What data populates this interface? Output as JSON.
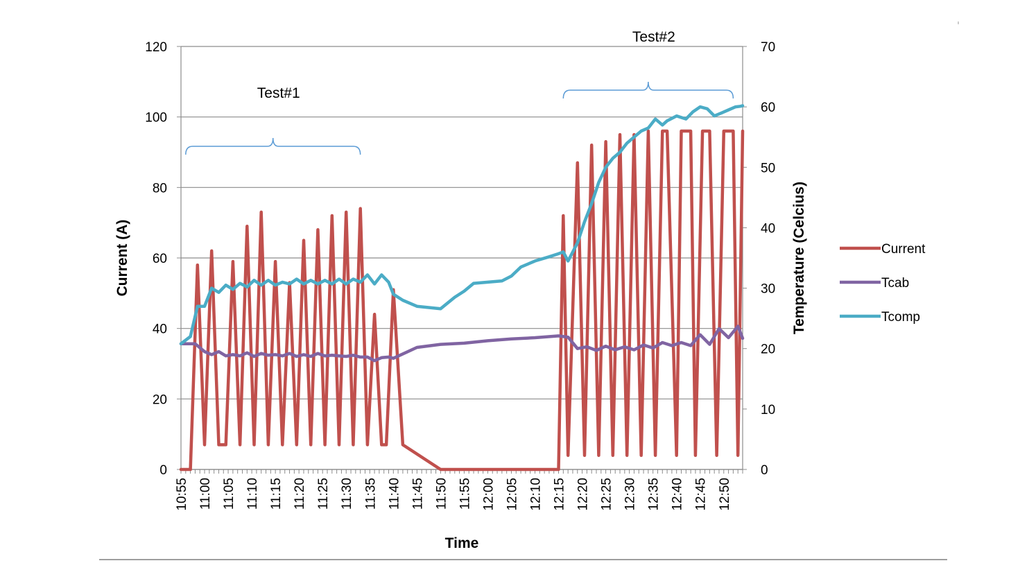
{
  "chart_data": {
    "type": "line",
    "xlabel": "Time",
    "ylabel": "Current (A)",
    "y2label": "Temperature (Celcius)",
    "ylim": [
      0,
      120
    ],
    "y2lim": [
      0,
      70
    ],
    "yticks": [
      "0",
      "20",
      "40",
      "60",
      "80",
      "100",
      "120"
    ],
    "y2ticks": [
      "0",
      "10",
      "20",
      "30",
      "40",
      "50",
      "60",
      "70"
    ],
    "x_ticks": [
      "10:55",
      "11:00",
      "11:05",
      "11:10",
      "11:15",
      "11:20",
      "11:25",
      "11:30",
      "11:35",
      "11:40",
      "11:45",
      "11:50",
      "11:55",
      "12:00",
      "12:05",
      "12:10",
      "12:15",
      "12:20",
      "12:25",
      "12:30",
      "12:35",
      "12:40",
      "12:45",
      "12:50"
    ],
    "x_range_minutes": [
      0,
      119
    ],
    "grid": "horizontal",
    "legend_position": "right",
    "annotations": [
      {
        "text": "Test#1",
        "from": "10:56",
        "to": "11:33"
      },
      {
        "text": "Test#2",
        "from": "12:16",
        "to": "12:52"
      }
    ],
    "series": [
      {
        "name": "Current",
        "axis": "left",
        "color": "#c0504d",
        "x": [
          0,
          2,
          3.5,
          5,
          6.5,
          8,
          9.5,
          11,
          12.5,
          14,
          15.5,
          17,
          18.5,
          20,
          21.5,
          23,
          24.5,
          26,
          27.5,
          29,
          30.5,
          32,
          33.5,
          35,
          36.5,
          38,
          39.5,
          41,
          42.5,
          43.5,
          45,
          47,
          55,
          65,
          75,
          80,
          81,
          82,
          84,
          85.5,
          87,
          88.5,
          90,
          91.5,
          93,
          94.5,
          96,
          97.5,
          99,
          100.5,
          102,
          103,
          105,
          106,
          107,
          108,
          109,
          110.5,
          112,
          113.5,
          115,
          116,
          117,
          118,
          119
        ],
        "values": [
          0,
          0,
          58,
          7,
          62,
          7,
          7,
          59,
          7,
          69,
          7,
          73,
          7,
          59,
          7,
          53,
          7,
          65,
          7,
          68,
          7,
          72,
          7,
          73,
          7,
          74,
          7,
          44,
          7,
          7,
          51,
          7,
          0,
          0,
          0,
          0,
          72,
          4,
          87,
          4,
          92,
          4,
          93,
          4,
          95,
          4,
          95,
          4,
          96,
          4,
          96,
          96,
          4,
          96,
          96,
          96,
          4,
          96,
          96,
          4,
          96,
          96,
          96,
          4,
          96
        ]
      },
      {
        "name": "Tcab",
        "axis": "right",
        "color": "#8064a2",
        "x": [
          0,
          3,
          5,
          6.5,
          8,
          9.5,
          11,
          12.5,
          14,
          15.5,
          17,
          18.5,
          20,
          21.5,
          23,
          24.5,
          26,
          27.5,
          29,
          30.5,
          32,
          33.5,
          35,
          36.5,
          38,
          39.5,
          41,
          42.5,
          44,
          45,
          50,
          55,
          60,
          65,
          70,
          75,
          80,
          82,
          84,
          86,
          88,
          90,
          92,
          94,
          96,
          98,
          100,
          102,
          104,
          106,
          108,
          110,
          112,
          114,
          116,
          118,
          119
        ],
        "values": [
          20.8,
          20.8,
          19.5,
          19,
          19.5,
          18.8,
          19,
          18.8,
          19.3,
          18.7,
          19.2,
          18.9,
          19,
          18.8,
          19.2,
          18.7,
          19,
          18.7,
          19.2,
          18.8,
          18.9,
          18.8,
          18.7,
          18.9,
          18.6,
          18.6,
          18,
          18.5,
          18.6,
          18.4,
          20.2,
          20.7,
          20.9,
          21.3,
          21.6,
          21.8,
          22.1,
          21.9,
          20,
          20.3,
          19.7,
          20.4,
          19.8,
          20.3,
          19.8,
          20.6,
          20.1,
          21,
          20.5,
          21,
          20.5,
          22.3,
          20.7,
          23.3,
          21.8,
          23.7,
          21.7
        ]
      },
      {
        "name": "Tcomp",
        "axis": "right",
        "color": "#4bacc6",
        "x": [
          0,
          2,
          3.5,
          5,
          6.5,
          8,
          9.5,
          11,
          12.5,
          14,
          15.5,
          17,
          18.5,
          20,
          21.5,
          23,
          24.5,
          26,
          27.5,
          29,
          30.5,
          32,
          33.5,
          35,
          36.5,
          38,
          39.5,
          41,
          42.5,
          44,
          45,
          47,
          50,
          55,
          58,
          60,
          62,
          65,
          68,
          70,
          72,
          75,
          78,
          80,
          81,
          82,
          84,
          85.5,
          87,
          88.5,
          90,
          91.5,
          93,
          94.5,
          96,
          97.5,
          99,
          100.5,
          102,
          103,
          105,
          107,
          108.5,
          110,
          111.5,
          113,
          114.5,
          116,
          117.5,
          118.5,
          119
        ],
        "values": [
          20.8,
          22,
          27,
          27,
          30,
          29.3,
          30.5,
          29.8,
          30.8,
          30.2,
          31.3,
          30.5,
          31.3,
          30.5,
          31,
          30.7,
          31.5,
          30.7,
          31.3,
          30.7,
          31.3,
          30.7,
          31.5,
          30.7,
          31.5,
          31,
          32.2,
          30.7,
          32.2,
          31,
          29,
          28,
          27,
          26.6,
          28.5,
          29.5,
          30.8,
          31,
          31.2,
          32,
          33.5,
          34.5,
          35.2,
          35.7,
          36,
          34.5,
          37.5,
          41,
          44,
          47.5,
          50,
          51.5,
          52.5,
          54,
          55,
          56,
          56.5,
          58,
          57,
          57.7,
          58.5,
          58,
          59.2,
          60,
          59.7,
          58.5,
          59,
          59.5,
          60,
          60.1,
          60.2
        ]
      }
    ]
  }
}
